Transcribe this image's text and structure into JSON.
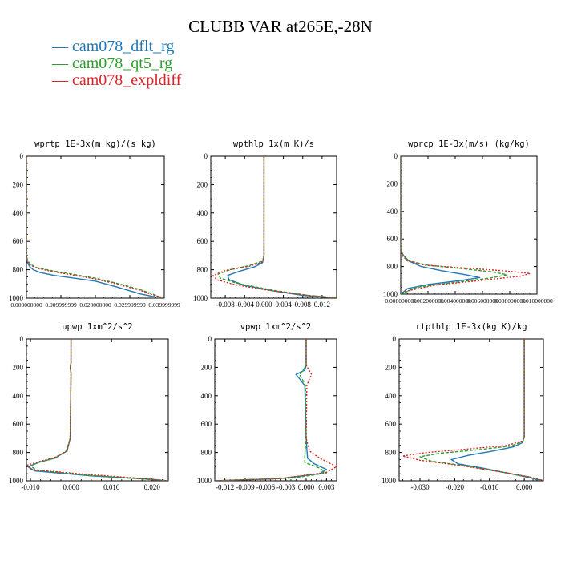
{
  "title": "CLUBB VAR at265E,-28N",
  "legend": [
    {
      "label": "cam078_dflt_rg",
      "color": "#1f77b4"
    },
    {
      "label": "cam078_qt5_rg",
      "color": "#2ca02c"
    },
    {
      "label": "cam078_expldiff",
      "color": "#d62728"
    }
  ],
  "chart_data": [
    {
      "type": "line",
      "title": "wprtp  1E-3x(m kg)/(s kg)",
      "xlim": [
        0,
        0.04
      ],
      "ylim": [
        1000,
        0
      ],
      "xticks": [
        0,
        0.01,
        0.02,
        0.03,
        0.04
      ],
      "xtick_labels": [
        "0.000000000",
        "0.009999999",
        "0.020000000",
        "0.029999999",
        "0.039999999"
      ],
      "yticks": [
        0,
        200,
        400,
        600,
        800,
        1000
      ],
      "ytick_labels": [
        "0",
        "200",
        "400",
        "600",
        "800",
        "1000"
      ],
      "series": [
        {
          "name": "cam078_dflt_rg",
          "color": "#1f77b4",
          "dash": "",
          "x": [
            0,
            0,
            0.0003,
            0.001,
            0.002,
            0.004,
            0.008,
            0.014,
            0.02,
            0.026,
            0.033,
            0.0375
          ],
          "y": [
            0,
            700,
            750,
            780,
            800,
            820,
            840,
            860,
            880,
            920,
            970,
            992
          ]
        },
        {
          "name": "cam078_qt5_rg",
          "color": "#2ca02c",
          "dash": "4,2",
          "x": [
            0,
            0,
            0.0003,
            0.001,
            0.003,
            0.007,
            0.013,
            0.02,
            0.027,
            0.033,
            0.037,
            0.0385
          ],
          "y": [
            0,
            700,
            730,
            760,
            785,
            805,
            830,
            860,
            900,
            940,
            975,
            990
          ]
        },
        {
          "name": "cam078_expldiff",
          "color": "#d62728",
          "dash": "2,2",
          "x": [
            0,
            0,
            0.0002,
            0.001,
            0.003,
            0.007,
            0.013,
            0.02,
            0.027,
            0.033,
            0.037,
            0.0395
          ],
          "y": [
            0,
            700,
            740,
            765,
            790,
            810,
            835,
            865,
            905,
            945,
            980,
            995
          ]
        }
      ]
    },
    {
      "type": "line",
      "title": "wpthlp  1x(m K)/s",
      "xlim": [
        -0.011,
        0.015
      ],
      "ylim": [
        1000,
        0
      ],
      "xticks": [
        -0.008,
        -0.004,
        0,
        0.004,
        0.008,
        0.012
      ],
      "xtick_labels": [
        "-0.008",
        "-0.004",
        "0.000",
        "0.004",
        "0.008",
        "0.012"
      ],
      "yticks": [
        0,
        200,
        400,
        600,
        800,
        1000
      ],
      "ytick_labels": [
        "0",
        "200",
        "400",
        "600",
        "800",
        "1000"
      ],
      "series": [
        {
          "name": "cam078_dflt_rg",
          "color": "#1f77b4",
          "dash": "",
          "x": [
            0,
            0,
            -0.0003,
            -0.002,
            -0.005,
            -0.0075,
            -0.0072,
            -0.004,
            0.002,
            0.008,
            0.013,
            0.015
          ],
          "y": [
            0,
            700,
            750,
            780,
            810,
            840,
            870,
            910,
            950,
            980,
            995,
            1000
          ]
        },
        {
          "name": "cam078_qt5_rg",
          "color": "#2ca02c",
          "dash": "4,2",
          "x": [
            0,
            0,
            -0.0003,
            -0.003,
            -0.007,
            -0.0095,
            -0.009,
            -0.005,
            0.002,
            0.009,
            0.014,
            0.015
          ],
          "y": [
            0,
            700,
            740,
            770,
            800,
            830,
            860,
            900,
            945,
            980,
            995,
            1000
          ]
        },
        {
          "name": "cam078_expldiff",
          "color": "#d62728",
          "dash": "2,2",
          "x": [
            0,
            0,
            -0.0003,
            -0.003,
            -0.008,
            -0.0105,
            -0.0098,
            -0.006,
            0.001,
            0.009,
            0.014,
            0.015
          ],
          "y": [
            0,
            700,
            745,
            775,
            805,
            840,
            870,
            905,
            945,
            980,
            995,
            1000
          ]
        }
      ]
    },
    {
      "type": "line",
      "title": "wprcp  1E-3x(m/s) (kg/kg)",
      "xlim": [
        0,
        0.01
      ],
      "ylim": [
        1000,
        0
      ],
      "xticks": [
        0,
        0.002,
        0.004,
        0.006,
        0.008,
        0.01
      ],
      "xtick_labels": [
        "0.000000000",
        "0.002000000",
        "0.004000000",
        "0.006000000",
        "0.008000000",
        "0.010000000"
      ],
      "yticks": [
        0,
        200,
        400,
        600,
        800,
        1000
      ],
      "ytick_labels": [
        "0",
        "200",
        "400",
        "600",
        "800",
        "1000"
      ],
      "series": [
        {
          "name": "cam078_dflt_rg",
          "color": "#1f77b4",
          "dash": "",
          "x": [
            0,
            0,
            0.0002,
            0.0006,
            0.0015,
            0.003,
            0.0048,
            0.0058,
            0.0045,
            0.002,
            0.0005,
            0
          ],
          "y": [
            0,
            680,
            720,
            760,
            800,
            830,
            860,
            880,
            900,
            930,
            960,
            1000
          ]
        },
        {
          "name": "cam078_qt5_rg",
          "color": "#2ca02c",
          "dash": "4,2",
          "x": [
            0,
            0,
            0.0002,
            0.0006,
            0.002,
            0.0045,
            0.0068,
            0.0078,
            0.0065,
            0.004,
            0.0012,
            0
          ],
          "y": [
            0,
            680,
            720,
            760,
            790,
            815,
            840,
            860,
            885,
            915,
            950,
            1000
          ]
        },
        {
          "name": "cam078_expldiff",
          "color": "#d62728",
          "dash": "2,2",
          "x": [
            0,
            0,
            0.0001,
            0.0005,
            0.0018,
            0.0045,
            0.0075,
            0.0095,
            0.0088,
            0.006,
            0.0025,
            0.0003
          ],
          "y": [
            0,
            680,
            720,
            760,
            790,
            810,
            830,
            850,
            870,
            900,
            935,
            980
          ]
        }
      ]
    },
    {
      "type": "line",
      "title": "upwp  1xm^2/s^2",
      "xlim": [
        -0.011,
        0.024
      ],
      "ylim": [
        1000,
        0
      ],
      "xticks": [
        -0.01,
        0,
        0.01,
        0.02
      ],
      "xtick_labels": [
        "-0.010",
        "0.000",
        "0.010",
        "0.020"
      ],
      "yticks": [
        0,
        200,
        400,
        600,
        800,
        1000
      ],
      "ytick_labels": [
        "0",
        "200",
        "400",
        "600",
        "800",
        "1000"
      ],
      "series": [
        {
          "name": "cam078_dflt_rg",
          "color": "#1f77b4",
          "dash": "",
          "x": [
            0,
            0,
            -0.0002,
            0,
            -0.0002,
            -0.001,
            -0.004,
            -0.008,
            -0.0105,
            -0.009,
            0.005,
            0.02,
            0.024
          ],
          "y": [
            0,
            170,
            200,
            240,
            700,
            790,
            840,
            870,
            900,
            930,
            965,
            990,
            1000
          ]
        },
        {
          "name": "cam078_qt5_rg",
          "color": "#2ca02c",
          "dash": "4,2",
          "x": [
            0,
            0,
            -0.0002,
            0,
            -0.0002,
            -0.0012,
            -0.004,
            -0.008,
            -0.01,
            -0.0085,
            0.004,
            0.019,
            0.024
          ],
          "y": [
            0,
            170,
            200,
            240,
            700,
            790,
            840,
            870,
            895,
            925,
            960,
            990,
            1000
          ]
        },
        {
          "name": "cam078_expldiff",
          "color": "#d62728",
          "dash": "2,2",
          "x": [
            0,
            0,
            -0.0002,
            0,
            -0.0002,
            -0.001,
            -0.004,
            -0.008,
            -0.0108,
            -0.01,
            0.002,
            0.018,
            0.024
          ],
          "y": [
            0,
            170,
            200,
            240,
            700,
            790,
            835,
            865,
            890,
            920,
            950,
            985,
            1000
          ]
        }
      ]
    },
    {
      "type": "line",
      "title": "vpwp  1xm^2/s^2",
      "xlim": [
        -0.0135,
        0.0045
      ],
      "ylim": [
        1000,
        0
      ],
      "xticks": [
        -0.012,
        -0.009,
        -0.006,
        -0.003,
        0,
        0.003
      ],
      "xtick_labels": [
        "-0.012",
        "-0.009",
        "-0.006",
        "-0.003",
        "0.000",
        "0.003"
      ],
      "yticks": [
        0,
        200,
        400,
        600,
        800,
        1000
      ],
      "ytick_labels": [
        "0",
        "200",
        "400",
        "600",
        "800",
        "1000"
      ],
      "series": [
        {
          "name": "cam078_dflt_rg",
          "color": "#1f77b4",
          "dash": "",
          "x": [
            0,
            0,
            -0.0002,
            -0.0015,
            -0.0008,
            -0.0002,
            0,
            0.0002,
            0.0012,
            0.003,
            0.002,
            -0.004,
            -0.0135
          ],
          "y": [
            0,
            190,
            220,
            250,
            290,
            330,
            700,
            840,
            880,
            920,
            950,
            985,
            1000
          ]
        },
        {
          "name": "cam078_qt5_rg",
          "color": "#2ca02c",
          "dash": "4,2",
          "x": [
            0,
            0,
            -0.0003,
            -0.001,
            -0.0005,
            -0.0001,
            0,
            -0.0002,
            -0.0002,
            0.002,
            0.003,
            -0.002,
            -0.0135
          ],
          "y": [
            0,
            180,
            210,
            250,
            290,
            330,
            700,
            820,
            870,
            910,
            945,
            980,
            1000
          ]
        },
        {
          "name": "cam078_expldiff",
          "color": "#d62728",
          "dash": "2,2",
          "x": [
            0,
            0,
            0.0003,
            0.0008,
            0.0004,
            0.0001,
            0,
            0.0005,
            0.002,
            0.0045,
            0.003,
            -0.004,
            -0.0135
          ],
          "y": [
            0,
            180,
            210,
            250,
            290,
            330,
            700,
            790,
            840,
            900,
            940,
            985,
            1000
          ]
        }
      ]
    },
    {
      "type": "line",
      "title": "rtpthlp  1E-3x(kg K)/kg",
      "xlim": [
        -0.036,
        0.0055
      ],
      "ylim": [
        1000,
        0
      ],
      "xticks": [
        -0.03,
        -0.02,
        -0.01,
        0
      ],
      "xtick_labels": [
        "-0.030",
        "-0.020",
        "-0.010",
        "0.000"
      ],
      "yticks": [
        0,
        200,
        400,
        600,
        800,
        1000
      ],
      "ytick_labels": [
        "0",
        "200",
        "400",
        "600",
        "800",
        "1000"
      ],
      "series": [
        {
          "name": "cam078_dflt_rg",
          "color": "#1f77b4",
          "dash": "",
          "x": [
            0,
            0,
            -0.0005,
            -0.003,
            -0.009,
            -0.016,
            -0.021,
            -0.019,
            -0.012,
            -0.004,
            0.002,
            0.0045
          ],
          "y": [
            0,
            690,
            730,
            760,
            790,
            820,
            850,
            880,
            910,
            950,
            980,
            1000
          ]
        },
        {
          "name": "cam078_qt5_rg",
          "color": "#2ca02c",
          "dash": "4,2",
          "x": [
            0,
            0,
            -0.0005,
            -0.004,
            -0.013,
            -0.024,
            -0.03,
            -0.027,
            -0.017,
            -0.006,
            0.002,
            0.005
          ],
          "y": [
            0,
            690,
            725,
            755,
            780,
            805,
            830,
            860,
            895,
            940,
            975,
            1000
          ]
        },
        {
          "name": "cam078_expldiff",
          "color": "#d62728",
          "dash": "2,2",
          "x": [
            0,
            0,
            -0.0006,
            -0.005,
            -0.016,
            -0.028,
            -0.035,
            -0.03,
            -0.019,
            -0.007,
            0.002,
            0.0055
          ],
          "y": [
            0,
            690,
            720,
            750,
            775,
            800,
            825,
            855,
            890,
            935,
            975,
            1000
          ]
        }
      ]
    }
  ]
}
